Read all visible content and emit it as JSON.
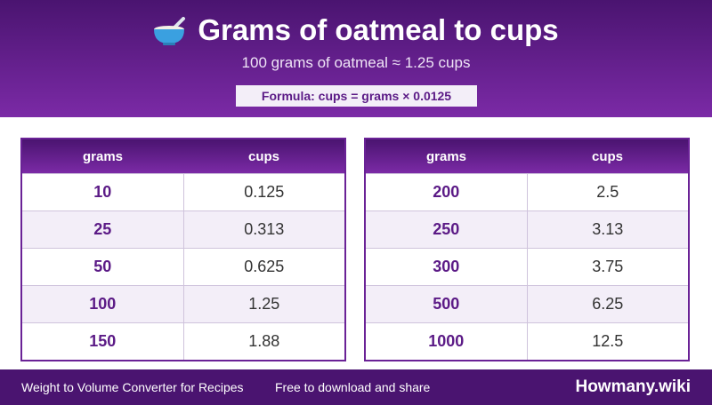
{
  "header": {
    "title": "Grams of oatmeal to cups",
    "subtitle": "100 grams of oatmeal ≈ 1.25 cups",
    "formula": "Formula: cups = grams × 0.0125"
  },
  "tables": [
    {
      "columns": [
        "grams",
        "cups"
      ],
      "rows": [
        [
          "10",
          "0.125"
        ],
        [
          "25",
          "0.313"
        ],
        [
          "50",
          "0.625"
        ],
        [
          "100",
          "1.25"
        ],
        [
          "150",
          "1.88"
        ]
      ]
    },
    {
      "columns": [
        "grams",
        "cups"
      ],
      "rows": [
        [
          "200",
          "2.5"
        ],
        [
          "250",
          "3.13"
        ],
        [
          "300",
          "3.75"
        ],
        [
          "500",
          "6.25"
        ],
        [
          "1000",
          "12.5"
        ]
      ]
    }
  ],
  "footer": {
    "left": "Weight to Volume Converter for Recipes",
    "middle": "Free to download and share",
    "brand": "Howmany.wiki"
  }
}
